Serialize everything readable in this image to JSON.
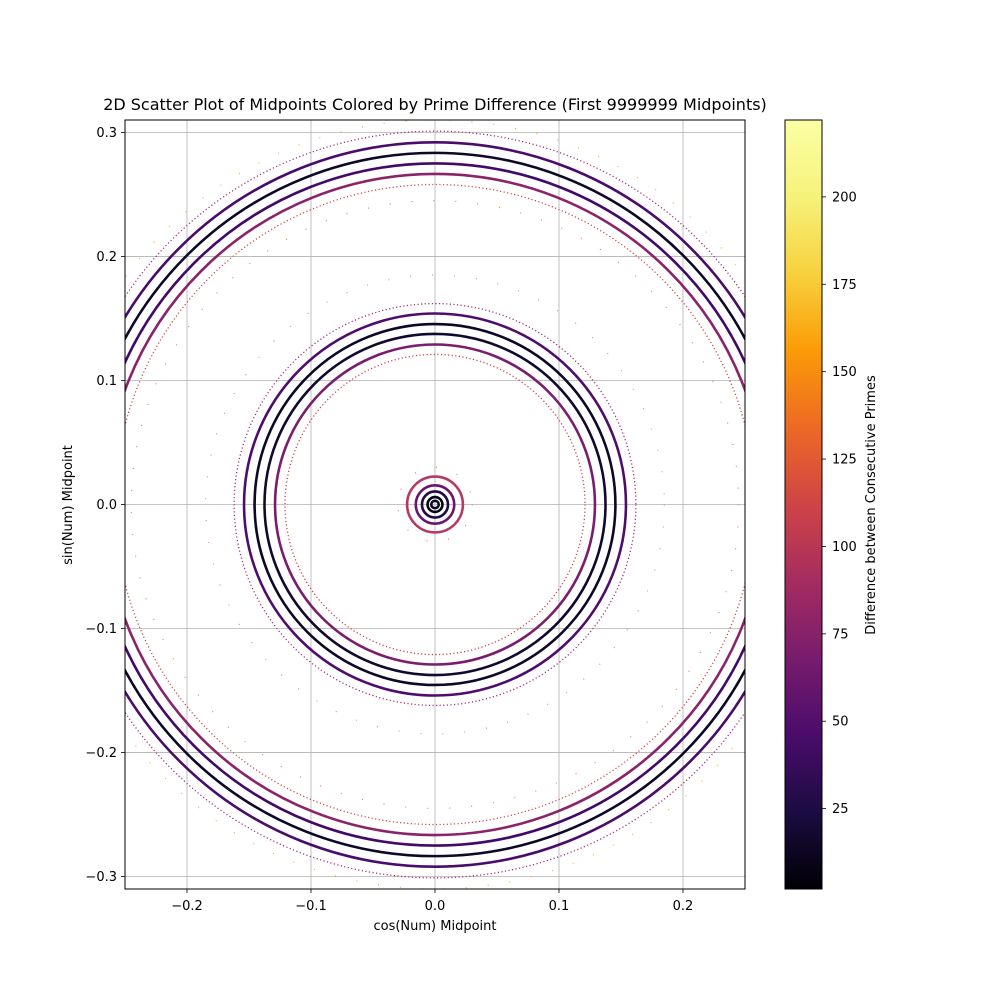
{
  "chart_data": {
    "type": "scatter",
    "title": "2D Scatter Plot of Midpoints Colored by Prime Difference (First 9999999 Midpoints)",
    "xlabel": "cos(Num) Midpoint",
    "ylabel": "sin(Num) Midpoint",
    "xlim": [
      -0.25,
      0.25
    ],
    "ylim": [
      -0.31,
      0.31
    ],
    "xticks": [
      -0.2,
      -0.1,
      0.0,
      0.1,
      0.2
    ],
    "xtick_labels": [
      "−0.2",
      "−0.1",
      "0.0",
      "0.1",
      "0.2"
    ],
    "yticks": [
      -0.3,
      -0.2,
      -0.1,
      0.0,
      0.1,
      0.2,
      0.3
    ],
    "ytick_labels": [
      "−0.3",
      "−0.2",
      "−0.1",
      "0.0",
      "0.1",
      "0.2",
      "0.3"
    ],
    "grid": true,
    "colorbar": {
      "label": "Difference between Consecutive Primes",
      "colormap": "inferno",
      "range": [
        2,
        222
      ],
      "ticks": [
        25,
        50,
        75,
        100,
        125,
        150,
        175,
        200
      ],
      "tick_labels": [
        "25",
        "50",
        "75",
        "100",
        "125",
        "150",
        "175",
        "200"
      ]
    },
    "rings": [
      {
        "radius": 0.301,
        "difference": 90,
        "color": "#a3307e",
        "style": "dotted"
      },
      {
        "radius": 0.292,
        "difference": 56,
        "color": "#4a0c6b",
        "style": "solid"
      },
      {
        "radius": 0.2835,
        "difference": 8,
        "color": "#0c0826",
        "style": "solid"
      },
      {
        "radius": 0.275,
        "difference": 50,
        "color": "#420a68",
        "style": "solid"
      },
      {
        "radius": 0.2665,
        "difference": 82,
        "color": "#8b2369",
        "style": "solid"
      },
      {
        "radius": 0.258,
        "difference": 120,
        "color": "#d04a4a",
        "style": "dotted"
      },
      {
        "radius": 0.162,
        "difference": 90,
        "color": "#a3307e",
        "style": "dotted"
      },
      {
        "radius": 0.154,
        "difference": 58,
        "color": "#4e0d6c",
        "style": "solid"
      },
      {
        "radius": 0.1455,
        "difference": 10,
        "color": "#0c0826",
        "style": "solid"
      },
      {
        "radius": 0.1375,
        "difference": 12,
        "color": "#12092e",
        "style": "solid"
      },
      {
        "radius": 0.129,
        "difference": 80,
        "color": "#7a1d6d",
        "style": "solid"
      },
      {
        "radius": 0.121,
        "difference": 118,
        "color": "#cb4149",
        "style": "dotted"
      },
      {
        "radius": 0.0225,
        "difference": 95,
        "color": "#b63a5f",
        "style": "solid"
      },
      {
        "radius": 0.0155,
        "difference": 70,
        "color": "#68166e",
        "style": "solid"
      },
      {
        "radius": 0.0105,
        "difference": 30,
        "color": "#210c4a",
        "style": "solid"
      },
      {
        "radius": 0.006,
        "difference": 4,
        "color": "#050417",
        "style": "solid"
      },
      {
        "radius": 0.003,
        "difference": 6,
        "color": "#0a0722",
        "style": "solid"
      },
      {
        "radius": 0.03,
        "difference": 150,
        "color": "#ef6a32",
        "style": "sparse"
      },
      {
        "radius": 0.185,
        "difference": 160,
        "color": "#f57e14",
        "style": "sparse"
      },
      {
        "radius": 0.245,
        "difference": 150,
        "color": "#ef6a32",
        "style": "sparse"
      },
      {
        "radius": 0.31,
        "difference": 170,
        "color": "#fb9b06",
        "style": "sparse"
      }
    ]
  }
}
